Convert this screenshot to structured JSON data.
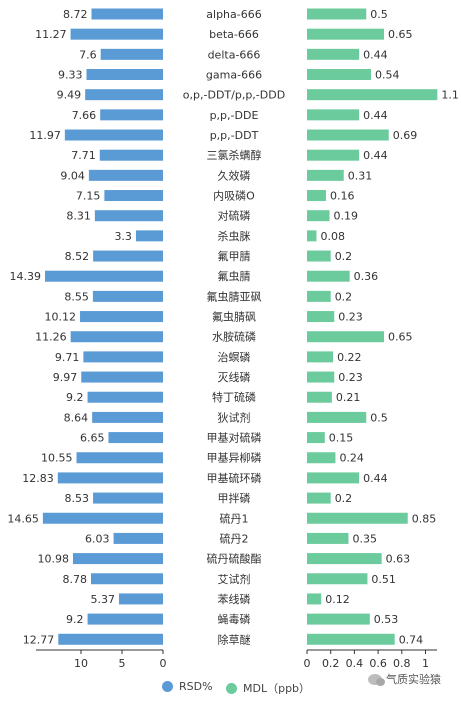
{
  "chart_data": {
    "type": "bar",
    "orientation": "horizontal",
    "layout": "back-to-back",
    "categories": [
      "alpha-666",
      "beta-666",
      "delta-666",
      "gama-666",
      "o,p,-DDT/p,p,-DDD",
      "p,p,-DDE",
      "p,p,-DDT",
      "三氯杀螨醇",
      "久效磷",
      "内吸磷O",
      "对硫磷",
      "杀虫脒",
      "氟甲腈",
      "氟虫腈",
      "氟虫腈亚砜",
      "氟虫腈砜",
      "水胺硫磷",
      "治螟磷",
      "灭线磷",
      "特丁硫磷",
      "狄试剂",
      "甲基对硫磷",
      "甲基异柳磷",
      "甲基硫环磷",
      "甲拌磷",
      "硫丹1",
      "硫丹2",
      "硫丹硫酸酯",
      "艾试剂",
      "苯线磷",
      "蝇毒磷",
      "除草醚"
    ],
    "series": [
      {
        "name": "RSD%",
        "color": "#5b9bd5",
        "values": [
          8.72,
          11.27,
          7.6,
          9.33,
          9.49,
          7.66,
          11.97,
          7.71,
          9.04,
          7.15,
          8.31,
          3.3,
          8.52,
          14.39,
          8.55,
          10.12,
          11.26,
          9.71,
          9.97,
          9.2,
          8.64,
          6.65,
          10.55,
          12.83,
          8.53,
          14.65,
          6.03,
          10.98,
          8.78,
          5.37,
          9.2,
          12.77
        ],
        "labels": [
          "8.72",
          "11.27",
          "7.6",
          "9.33",
          "9.49",
          "7.66",
          "11.97",
          "7.71",
          "9.04",
          "7.15",
          "8.31",
          "3.3",
          "8.52",
          "14.39",
          "8.55",
          "10.12",
          "11.26",
          "9.71",
          "9.97",
          "9.2",
          "8.64",
          "6.65",
          "10.55",
          "12.83",
          "8.53",
          "14.65",
          "6.03",
          "10.98",
          "8.78",
          "5.37",
          "9.2",
          "12.77"
        ],
        "axis_range": [
          0,
          15
        ],
        "axis_ticks": [
          "10",
          "5",
          "0"
        ],
        "axis_tick_values": [
          10,
          5,
          0
        ],
        "direction": "reversed"
      },
      {
        "name": "MDL（ppb）",
        "color": "#6ccb9c",
        "values": [
          0.5,
          0.65,
          0.44,
          0.54,
          1.1,
          0.44,
          0.69,
          0.44,
          0.31,
          0.16,
          0.19,
          0.08,
          0.2,
          0.36,
          0.2,
          0.23,
          0.65,
          0.22,
          0.23,
          0.21,
          0.5,
          0.15,
          0.24,
          0.44,
          0.2,
          0.85,
          0.35,
          0.63,
          0.51,
          0.12,
          0.53,
          0.74
        ],
        "labels": [
          "0.5",
          "0.65",
          "0.44",
          "0.54",
          "1.1",
          "0.44",
          "0.69",
          "0.44",
          "0.31",
          "0.16",
          "0.19",
          "0.08",
          "0.2",
          "0.36",
          "0.2",
          "0.23",
          "0.65",
          "0.22",
          "0.23",
          "0.21",
          "0.5",
          "0.15",
          "0.24",
          "0.44",
          "0.2",
          "0.85",
          "0.35",
          "0.63",
          "0.51",
          "0.12",
          "0.53",
          "0.74"
        ],
        "axis_range": [
          0,
          1.1
        ],
        "axis_ticks": [
          "0",
          "0.2",
          "0.4",
          "0.6",
          "0.8",
          "1"
        ],
        "axis_tick_values": [
          0,
          0.2,
          0.4,
          0.6,
          0.8,
          1.0
        ],
        "direction": "normal"
      }
    ],
    "legend": {
      "position": "bottom",
      "items": [
        "RSD%",
        "MDL（ppb）"
      ]
    },
    "grid": false
  },
  "watermark": {
    "text": "气质实验猿",
    "icon": "wechat-icon"
  }
}
